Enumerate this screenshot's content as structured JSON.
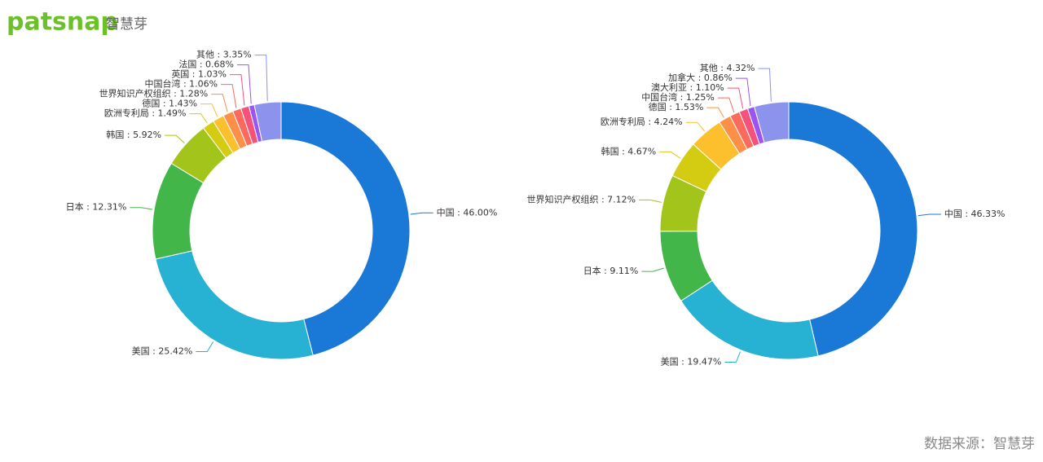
{
  "logo": "patsnap",
  "logo_subtitle": "智慧芽",
  "source": "数据来源：智慧芽",
  "chart_data": [
    {
      "type": "donut",
      "values": [
        46.0,
        25.42,
        12.31,
        5.92,
        1.49,
        1.43,
        1.28,
        1.06,
        1.03,
        0.68,
        3.35
      ],
      "value_labels": [
        "中国 : 46.00%",
        "美国 : 25.42%",
        "日本 : 12.31%",
        "韩国 : 5.92%",
        "欧洲专利局 : 1.49%",
        "德国 : 1.43%",
        "世界知识产权组织 : 1.28%",
        "中国台湾 : 1.06%",
        "英国 : 1.03%",
        "法国 : 0.68%",
        "其他 : 3.35%"
      ],
      "colors": [
        "#1a78d6",
        "#27b1d3",
        "#43b649",
        "#a3c51b",
        "#d4cc13",
        "#fcc02f",
        "#fd8f49",
        "#fb6a5c",
        "#f4527a",
        "#9b54f0",
        "#8c93ec"
      ]
    },
    {
      "type": "donut",
      "values": [
        46.33,
        19.47,
        9.11,
        7.12,
        4.67,
        4.24,
        1.53,
        1.25,
        1.1,
        0.86,
        4.32
      ],
      "value_labels": [
        "中国 : 46.33%",
        "美国 : 19.47%",
        "日本 : 9.11%",
        "世界知识产权组织 : 7.12%",
        "韩国 : 4.67%",
        "欧洲专利局 : 4.24%",
        "德国 : 1.53%",
        "中国台湾 : 1.25%",
        "澳大利亚 : 1.10%",
        "加拿大 : 0.86%",
        "其他 : 4.32%"
      ],
      "colors": [
        "#1a78d6",
        "#27b1d3",
        "#43b649",
        "#a3c51b",
        "#d4cc13",
        "#fcc02f",
        "#fd8f49",
        "#fb6a5c",
        "#f4527a",
        "#9b54f0",
        "#8c93ec"
      ]
    }
  ]
}
